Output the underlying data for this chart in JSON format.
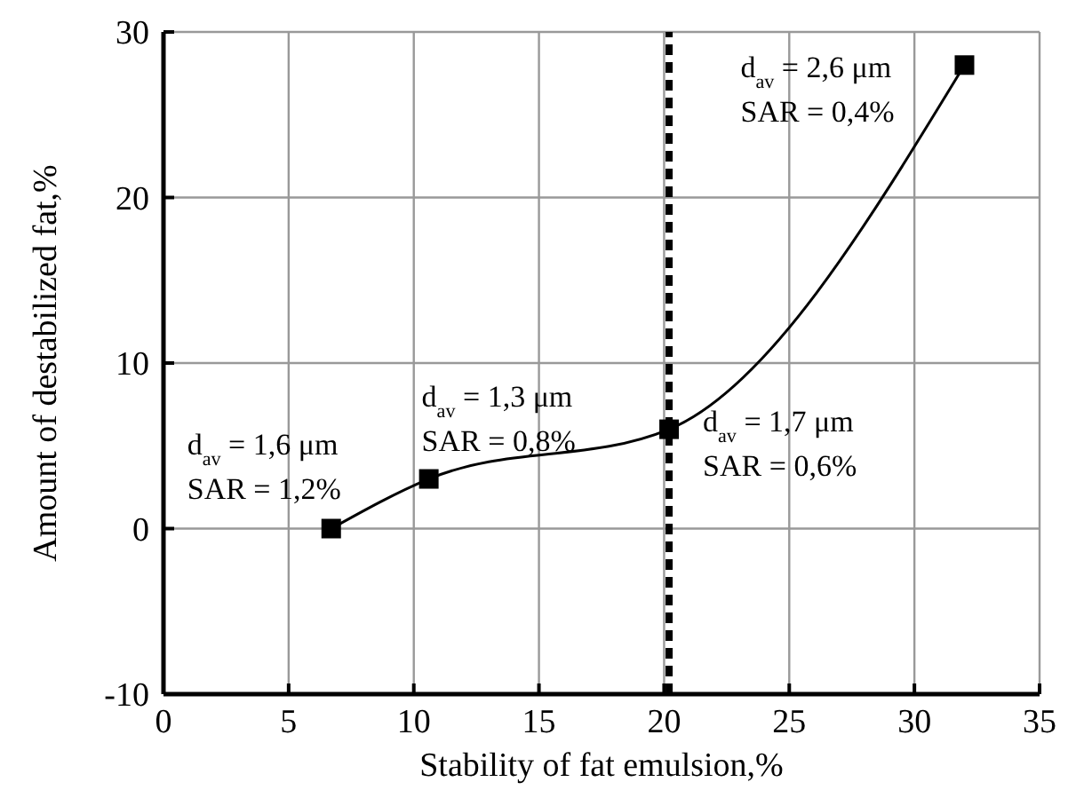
{
  "chart_data": {
    "type": "line",
    "xlabel": "Stability of fat emulsion,%",
    "ylabel": "Amount of destabilized fat,%",
    "x": [
      6.7,
      10.6,
      20.2,
      32.0
    ],
    "series": [
      {
        "color": "#000000",
        "values": [
          0,
          3.0,
          6.0,
          28.0
        ]
      }
    ],
    "xlim": [
      0,
      35
    ],
    "xticks": [
      0,
      5,
      10,
      15,
      20,
      25,
      30,
      35
    ],
    "ylim": [
      -10,
      30
    ],
    "yticks": [
      -10,
      0,
      10,
      20,
      30
    ],
    "grid": true,
    "marker": "square",
    "line_style": "solid",
    "ref_lines": [
      {
        "axis": "x",
        "value": 20.2,
        "color": "#000000",
        "line_style": "dashed"
      }
    ],
    "annotations": [
      {
        "text": "d$_{av}$ = 1,6 μm\nSAR = 1,2%",
        "x": 6.7,
        "y": 0
      },
      {
        "text": "d$_{av}$ = 1,3 μm\nSAR = 0,8%",
        "x": 10.6,
        "y": 3.0
      },
      {
        "text": "d$_{av}$ = 1,7 μm\nSAR = 0,6%",
        "x": 20.2,
        "y": 6.0
      },
      {
        "text": "d$_{av}$ = 2,6 μm\nSAR = 0,4%",
        "x": 32.0,
        "y": 28.0
      }
    ]
  }
}
